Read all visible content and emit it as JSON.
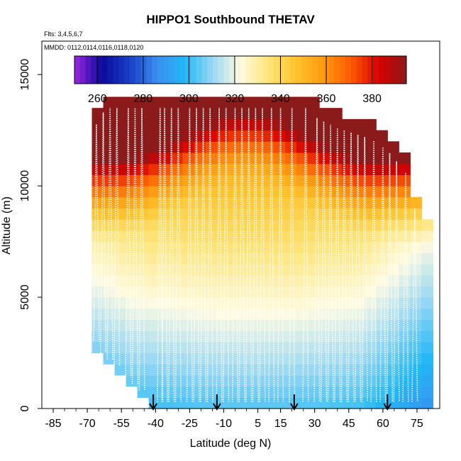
{
  "chart_data": {
    "type": "heatmap",
    "title": "HIPPO1 Southbound THETAV",
    "flights_note": "Flts: 3,4,5,6,7",
    "dates_note": "MMDD: 0112,0114,0116,0118,0120",
    "xlabel": "Latitude (deg N)",
    "ylabel": "Altitude (m)",
    "xlim": [
      -90,
      85
    ],
    "ylim": [
      0,
      16500
    ],
    "x_ticks": [
      -85,
      -70,
      -55,
      -40,
      -25,
      -10,
      5,
      15,
      30,
      45,
      60,
      75
    ],
    "y_ticks": [
      0,
      5000,
      10000,
      15000
    ],
    "colorbar": {
      "ticks": [
        260,
        280,
        300,
        320,
        340,
        360,
        380
      ],
      "range": [
        250,
        395
      ],
      "colors": [
        "#9a27e0",
        "#0a0a9a",
        "#1a3fc6",
        "#3b8ff0",
        "#22b8f5",
        "#9ad8f5",
        "#fffbe0",
        "#ffe57a",
        "#ffc42e",
        "#ff9a10",
        "#ff5a00",
        "#d80000",
        "#8b1a1a"
      ]
    },
    "grid": {
      "lat_start": -68,
      "lat_end": 80,
      "lat_step": 5,
      "alt_step": 500,
      "field": "theta = 299 + 0.005*alt + 60*max(0, alt-9500)/3500*(1-latfactor) ... piecewise model",
      "coverage_top_m": [
        [
          -68,
          12500
        ],
        [
          -65,
          13500
        ],
        [
          -60,
          14000
        ],
        [
          -45,
          14000
        ],
        [
          -40,
          14000
        ],
        [
          -10,
          14000
        ],
        [
          20,
          14000
        ],
        [
          25,
          14000
        ],
        [
          30,
          13500
        ],
        [
          40,
          13000
        ],
        [
          55,
          12500
        ],
        [
          62,
          12000
        ],
        [
          70,
          11000
        ],
        [
          75,
          9000
        ],
        [
          80,
          8000
        ]
      ],
      "coverage_bottom_m": [
        [
          -68,
          3500
        ],
        [
          -65,
          2500
        ],
        [
          -55,
          1500
        ],
        [
          -50,
          1000
        ],
        [
          -45,
          500
        ],
        [
          -40,
          0
        ],
        [
          75,
          0
        ],
        [
          80,
          0
        ]
      ]
    },
    "sounding_latitudes": [
      -66,
      -63,
      -60,
      -57,
      -52,
      -49,
      -46,
      -38,
      -36,
      -33,
      -30,
      -25,
      -22,
      -19,
      -16,
      -12,
      -9,
      -5,
      -2,
      1,
      4,
      7,
      11,
      15,
      20,
      26,
      31,
      34,
      37,
      40,
      43,
      46,
      49,
      52,
      56,
      60,
      63,
      66,
      70,
      74
    ],
    "marker_latitudes": [
      -41,
      -13,
      21,
      62
    ]
  }
}
